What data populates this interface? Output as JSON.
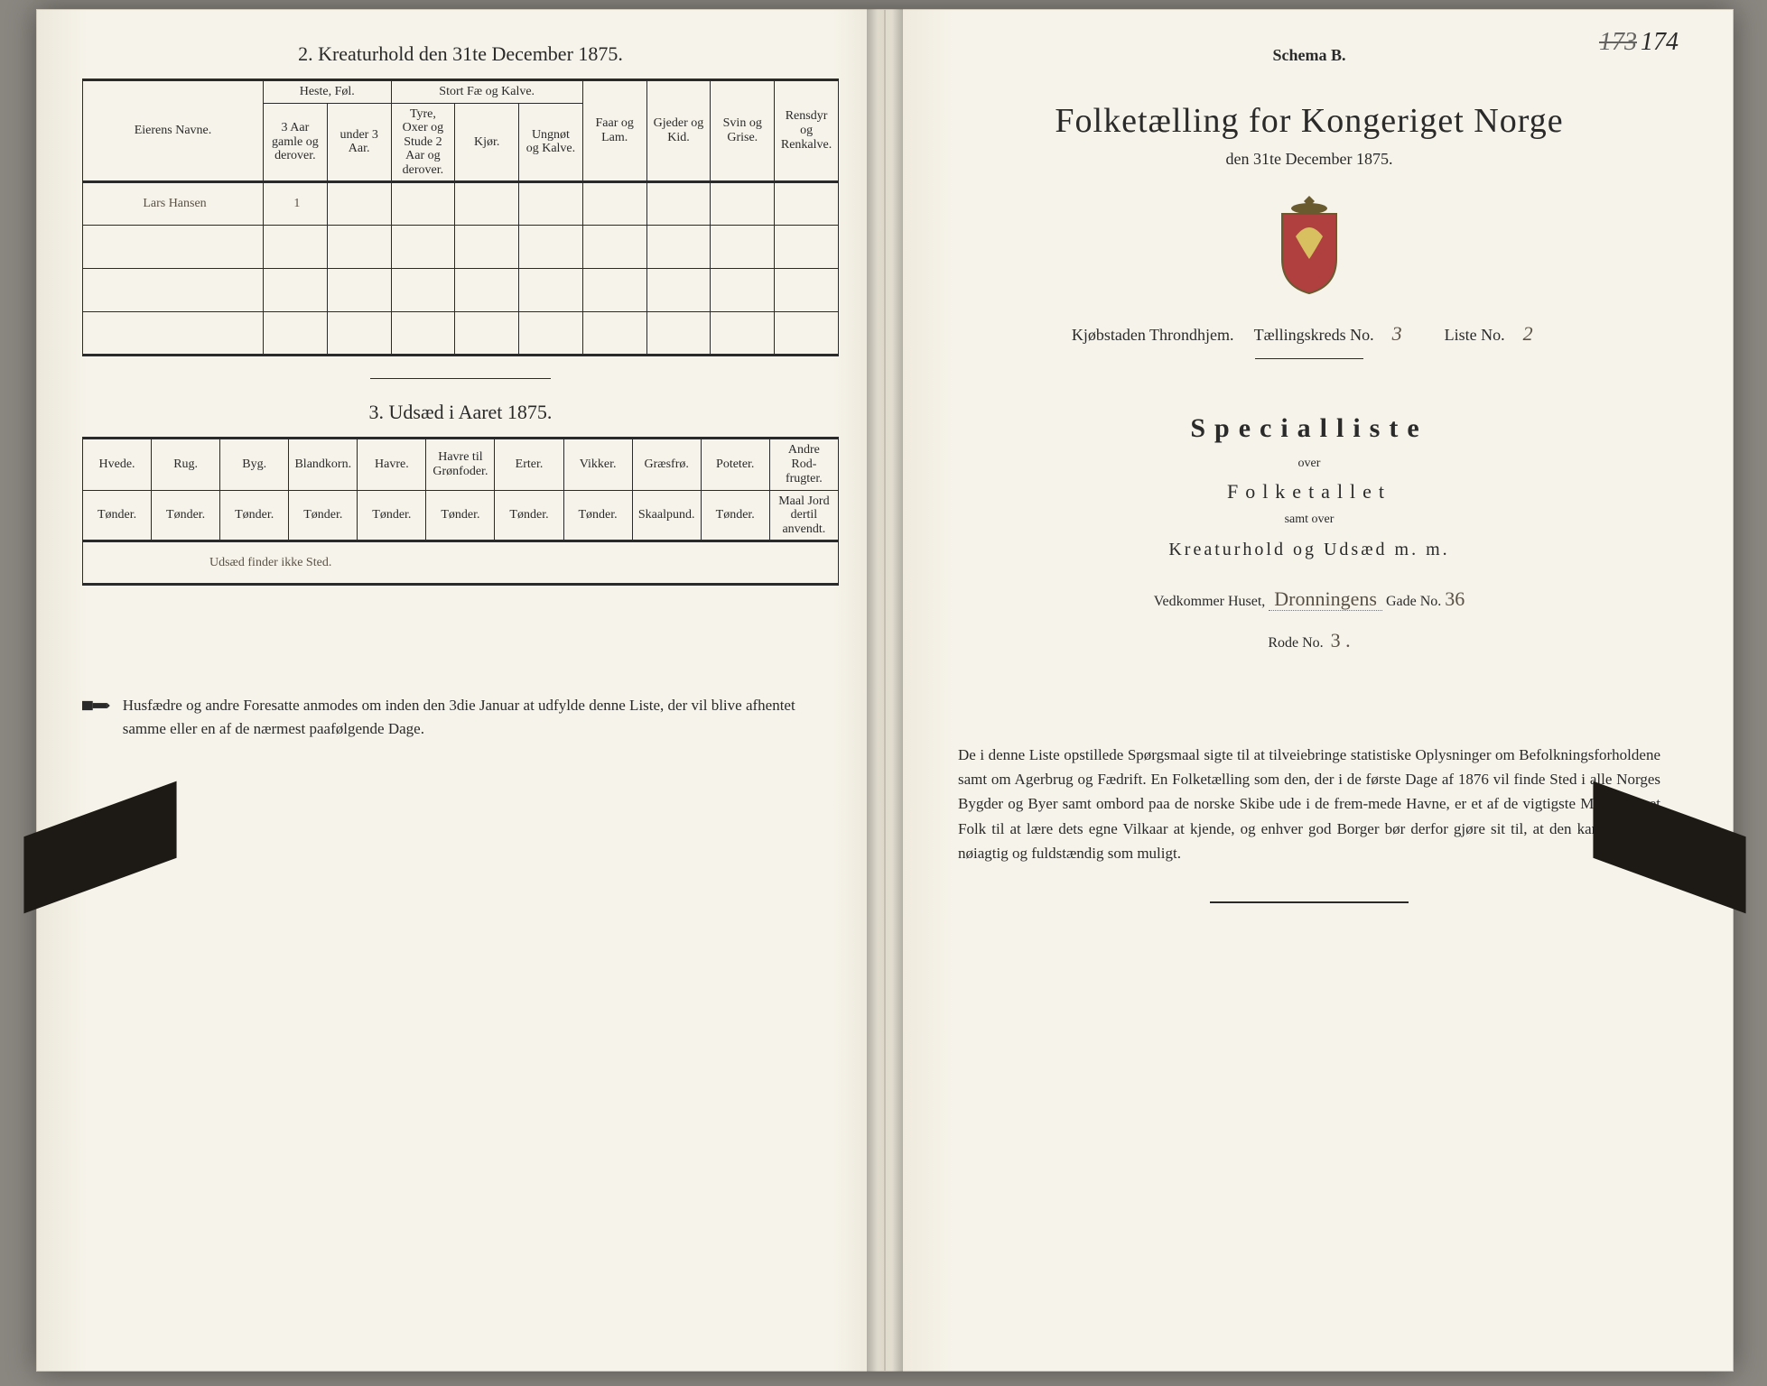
{
  "leftPage": {
    "section2": {
      "title": "2.  Kreaturhold den 31te December 1875.",
      "headers": {
        "eier": "Eierens Navne.",
        "heste_group": "Heste, Føl.",
        "heste_a": "3 Aar gamle og derover.",
        "heste_b": "under 3 Aar.",
        "stort_group": "Stort Fæ og Kalve.",
        "stort_a": "Tyre, Oxer og Stude 2 Aar og derover.",
        "stort_b": "Kjør.",
        "stort_c": "Ungnøt og Kalve.",
        "faar": "Faar og Lam.",
        "gjeder": "Gjeder og Kid.",
        "svin": "Svin og Grise.",
        "rensdyr": "Rensdyr og Renkalve."
      },
      "rows": [
        {
          "eier": "Lars Hansen",
          "heste_a": "1"
        }
      ]
    },
    "section3": {
      "title": "3.  Udsæd i Aaret 1875.",
      "cols": [
        {
          "h": "Hvede.",
          "u": "Tønder."
        },
        {
          "h": "Rug.",
          "u": "Tønder."
        },
        {
          "h": "Byg.",
          "u": "Tønder."
        },
        {
          "h": "Blandkorn.",
          "u": "Tønder."
        },
        {
          "h": "Havre.",
          "u": "Tønder."
        },
        {
          "h": "Havre til Grønfoder.",
          "u": "Tønder."
        },
        {
          "h": "Erter.",
          "u": "Tønder."
        },
        {
          "h": "Vikker.",
          "u": "Tønder."
        },
        {
          "h": "Græsfrø.",
          "u": "Skaalpund."
        },
        {
          "h": "Poteter.",
          "u": "Tønder."
        },
        {
          "h": "Andre Rod-frugter.",
          "u": "Maal Jord dertil anvendt."
        }
      ],
      "handwritten_row": "Udsæd finder ikke Sted."
    },
    "footnote": "Husfædre og andre Foresatte anmodes om inden den 3die Januar at udfylde denne Liste, der vil blive afhentet samme eller en af de nærmest paafølgende Dage."
  },
  "rightPage": {
    "pageNumber": {
      "struck": "173",
      "current": "174"
    },
    "schema": "Schema B.",
    "title": "Folketælling for Kongeriget Norge",
    "dateLine": "den 31te December 1875.",
    "meta": {
      "kjobstad_label": "Kjøbstaden Throndhjem.",
      "tkreds_label": "Tællingskreds No.",
      "tkreds_val": "3",
      "liste_label": "Liste No.",
      "liste_val": "2"
    },
    "special": "Specialliste",
    "over": "over",
    "folketallet": "Folketallet",
    "samt": "samt over",
    "kreatur": "Kreaturhold og Udsæd m. m.",
    "vedk": {
      "label_a": "Vedkommer Huset,",
      "house": "Dronningens",
      "label_b": "Gade No.",
      "gade_no": "36"
    },
    "rode": {
      "label": "Rode No.",
      "val": "3 ."
    },
    "body": "De i denne Liste opstillede Spørgsmaal sigte til at tilveiebringe statistiske Oplysninger om Befolkningsforholdene samt om Agerbrug og Fædrift.  En Folketælling som den, der i de første Dage af 1876 vil finde Sted i alle Norges Bygder og Byer samt ombord paa de norske Skibe ude i de frem-mede Havne, er et af de vigtigste Midler for et Folk til at lære dets egne Vilkaar at kjende, og enhver god Borger bør derfor gjøre sit til, at den kan blive saa nøiagtig og fuldstændig som muligt."
  },
  "colors": {
    "paper": "#f6f3ea",
    "ink": "#2a2a2a",
    "handInk": "#5a5146",
    "clip": "#1d1a16",
    "bg": "#8a8680"
  }
}
